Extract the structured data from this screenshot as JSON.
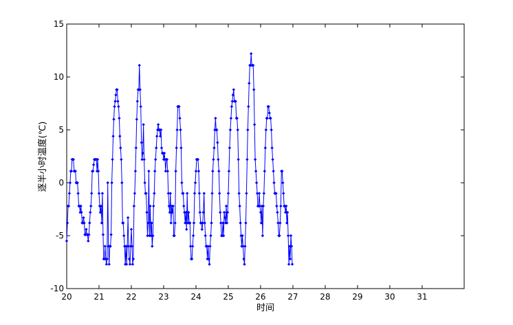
{
  "chart_data": {
    "type": "line",
    "title": "",
    "xlabel": "时间",
    "ylabel": "逐半小时温度(℃)",
    "xlim": [
      20,
      32.3
    ],
    "ylim": [
      -10,
      15
    ],
    "xticks": [
      20,
      21,
      22,
      23,
      24,
      25,
      26,
      27,
      28,
      29,
      30,
      31
    ],
    "xtick_labels": [
      "20",
      "21",
      "22",
      "23",
      "24",
      "25",
      "26",
      "27",
      "28",
      "29",
      "30",
      "31"
    ],
    "yticks": [
      -10,
      -5,
      0,
      5,
      10,
      15
    ],
    "ytick_labels": [
      "-10",
      "-5",
      "0",
      "5",
      "10",
      "15"
    ],
    "grid": false,
    "legend": "none",
    "line_color": "#0000ff",
    "marker": "diamond",
    "sample_interval_days": 0.0208333,
    "series": [
      {
        "x_start": 20.0,
        "values": [
          -5.5,
          -3.8,
          -2.2,
          -2.2,
          -1.0,
          0.0,
          1.1,
          1.1,
          2.2,
          2.2,
          2.2,
          1.1,
          1.1,
          1.1,
          0.0,
          0.0,
          0.0,
          -1.0,
          -2.2,
          -2.2,
          -2.8,
          -2.2,
          -2.8,
          -3.8,
          -3.8,
          -3.3,
          -3.8,
          -4.9,
          -4.9,
          -4.4,
          -4.9,
          -4.9,
          -5.5,
          -4.9,
          -3.8,
          -2.8,
          -2.2,
          -1.0,
          1.1,
          1.1,
          1.7,
          2.2,
          2.2,
          2.2,
          2.2,
          1.1,
          2.2,
          1.1,
          -1.0,
          -2.2,
          -2.8,
          -2.2,
          -3.8,
          -1.0,
          -4.9,
          -7.2,
          -7.2,
          -6.0,
          -7.2,
          -7.7,
          -7.2,
          0.0,
          -6.0,
          -7.7,
          -6.0,
          -6.0,
          -4.9,
          0.0,
          2.2,
          4.4,
          6.0,
          7.2,
          7.7,
          8.3,
          8.8,
          8.8,
          7.7,
          7.2,
          6.1,
          4.4,
          3.3,
          2.2,
          0.0,
          -3.8,
          -3.8,
          -5.0,
          -6.0,
          -7.7,
          -6.0,
          -7.7,
          -6.0,
          -3.3,
          -6.0,
          -7.2,
          -7.7,
          -6.0,
          -4.4,
          -6.0,
          -7.7,
          -7.2,
          -2.2,
          -1.0,
          1.1,
          3.3,
          6.0,
          7.7,
          8.8,
          8.8,
          11.1,
          8.8,
          7.2,
          3.8,
          2.2,
          2.8,
          5.5,
          2.2,
          0.0,
          -1.0,
          -1.0,
          -2.8,
          -5.0,
          -3.8,
          1.1,
          -5.0,
          -2.2,
          -5.0,
          -3.8,
          -6.0,
          -5.0,
          -2.2,
          -1.0,
          1.1,
          2.2,
          3.3,
          4.4,
          5.0,
          5.5,
          5.0,
          5.0,
          4.4,
          5.0,
          3.3,
          2.8,
          2.8,
          2.2,
          2.8,
          2.2,
          1.1,
          2.2,
          2.2,
          1.1,
          -1.0,
          -2.2,
          -2.8,
          -1.0,
          -3.8,
          -2.2,
          -2.8,
          -2.2,
          -5.0,
          -5.0,
          -3.8,
          1.1,
          3.3,
          5.0,
          7.2,
          7.2,
          7.2,
          6.1,
          5.0,
          3.3,
          0.0,
          -1.0,
          -1.0,
          -2.2,
          -2.8,
          -3.8,
          -2.8,
          -4.4,
          -1.0,
          -3.8,
          -2.8,
          -3.8,
          -3.8,
          -6.0,
          -7.2,
          -7.2,
          -6.0,
          -5.0,
          -3.8,
          -1.0,
          0.0,
          1.1,
          2.2,
          2.2,
          2.2,
          1.1,
          -1.0,
          -2.8,
          -3.8,
          -3.8,
          -4.4,
          -3.8,
          -2.8,
          -1.0,
          -3.8,
          -5.0,
          -6.0,
          -6.0,
          -7.2,
          -6.0,
          -7.2,
          -7.7,
          -6.0,
          -5.0,
          -3.8,
          -1.0,
          1.1,
          2.2,
          3.3,
          5.0,
          6.1,
          5.0,
          5.0,
          3.8,
          2.2,
          1.1,
          -1.0,
          -2.8,
          -3.8,
          -5.0,
          -5.0,
          -3.8,
          -5.0,
          -2.8,
          -3.3,
          -3.8,
          -2.2,
          -3.8,
          -2.8,
          -1.0,
          1.1,
          3.3,
          5.0,
          6.1,
          7.2,
          7.7,
          8.3,
          8.8,
          7.7,
          7.7,
          7.7,
          6.1,
          6.1,
          5.0,
          2.2,
          -1.0,
          -2.2,
          -3.8,
          -5.0,
          -6.0,
          -5.0,
          -6.0,
          -7.2,
          -7.7,
          -6.0,
          -3.8,
          -1.0,
          2.2,
          5.0,
          7.2,
          9.4,
          11.1,
          11.1,
          12.2,
          11.1,
          11.1,
          11.1,
          8.8,
          5.5,
          2.2,
          1.1,
          0.0,
          -1.0,
          -2.2,
          -2.2,
          -1.0,
          -2.2,
          -2.8,
          -3.8,
          -2.2,
          -5.0,
          -2.2,
          -1.0,
          1.1,
          3.3,
          5.0,
          6.1,
          6.1,
          7.2,
          7.2,
          6.6,
          6.1,
          6.1,
          5.0,
          3.3,
          2.2,
          1.1,
          0.0,
          -1.0,
          -1.0,
          -1.0,
          -2.2,
          -2.8,
          -3.8,
          -5.0,
          -5.0,
          -3.8,
          -2.2,
          1.1,
          1.1,
          0.0,
          -1.0,
          -2.2,
          -2.2,
          -2.8,
          -2.2,
          -3.8,
          -2.8,
          -5.0,
          -7.7,
          -6.0,
          -7.2,
          -5.0,
          -6.0,
          -7.7
        ]
      }
    ]
  }
}
